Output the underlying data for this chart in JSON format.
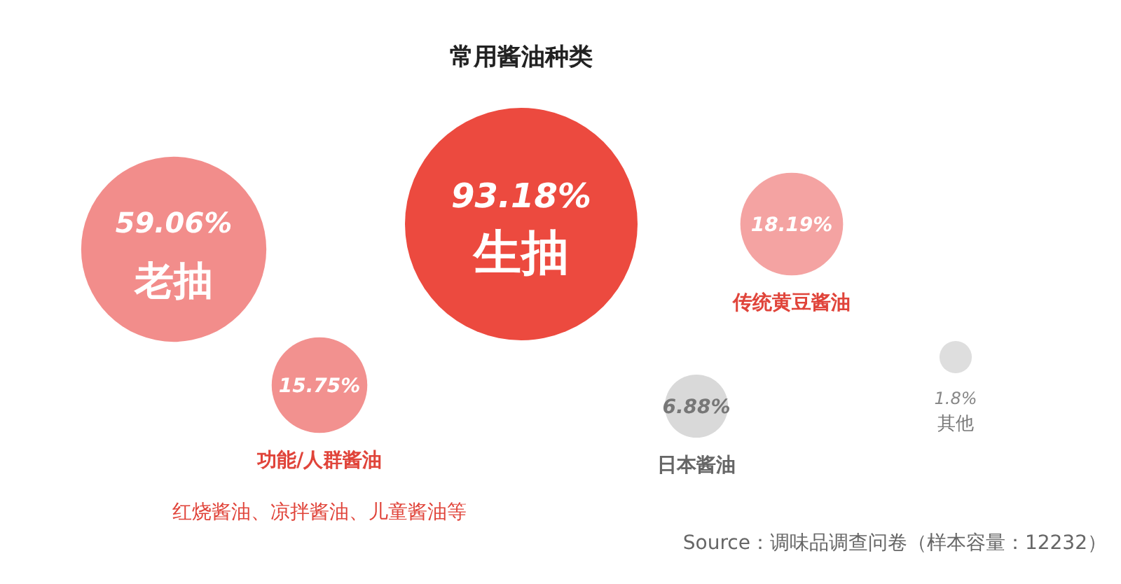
{
  "chart_data": {
    "type": "other",
    "title": "常用酱油种类",
    "categories": [
      "生抽",
      "老抽",
      "传统黄豆酱油",
      "功能/人群酱油",
      "日本酱油",
      "其他"
    ],
    "values": [
      93.18,
      59.06,
      18.19,
      15.75,
      6.88,
      1.8
    ],
    "value_labels": [
      "93.18%",
      "59.06%",
      "18.19%",
      "15.75%",
      "6.88%",
      "1.8%"
    ],
    "colors": [
      "#ec4a3f",
      "#f28d8b",
      "#f4a3a2",
      "#f2918f",
      "#d9d9d9",
      "#dedede"
    ],
    "annotations": [
      "红烧酱油、凉拌酱油、儿童酱油等",
      "Source：调味品调查问卷（样本容量：12232）"
    ]
  }
}
